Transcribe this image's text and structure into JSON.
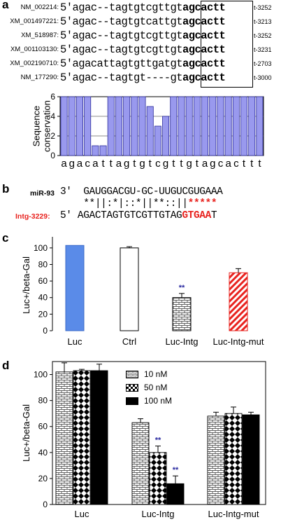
{
  "panels": {
    "a": "a",
    "b": "b",
    "c": "c",
    "d": "d"
  },
  "alignment": {
    "rows": [
      {
        "id": "NM_002214:",
        "prefix": "5'",
        "seq": "agac--tagtgtcgttgt",
        "seed": "agcactt",
        "pos": "t-3252"
      },
      {
        "id": "XM_001497221:",
        "prefix": "5'",
        "seq": "agac--tagtgtcattgt",
        "seed": "agcactt",
        "pos": "t-3213"
      },
      {
        "id": "XM_518987:",
        "prefix": "5'",
        "seq": "agac--tagtgtcgttgt",
        "seed": "agcactt",
        "pos": "t-3252"
      },
      {
        "id": "XM_001103130:",
        "prefix": "5'",
        "seq": "agac--tagtgtcgttgt",
        "seed": "agcactt",
        "pos": "t-3231"
      },
      {
        "id": "XM_002190710:",
        "prefix": "5'",
        "seq": "agacattagtgttgatgt",
        "seed": "agcactt",
        "pos": "t-2703"
      },
      {
        "id": "NM_177290:",
        "prefix": "5'",
        "seq": "agac--tagtgt----gt",
        "seed": "agcactt",
        "pos": "t-3000"
      }
    ]
  },
  "chart_data": [
    {
      "type": "bar",
      "ylabel": "Sequence conservation",
      "ylim": [
        0,
        6
      ],
      "yticks": [
        0,
        2,
        4,
        6
      ],
      "categories": [
        "a",
        "g",
        "a",
        "c",
        "a",
        "t",
        "t",
        "a",
        "g",
        "t",
        "g",
        "t",
        "c",
        "g",
        "t",
        "t",
        "g",
        "t",
        "a",
        "g",
        "c",
        "a",
        "c",
        "t",
        "t",
        "t"
      ],
      "values": [
        6,
        6,
        6,
        6,
        1,
        1,
        6,
        6,
        6,
        6,
        6,
        5,
        3,
        4,
        6,
        6,
        6,
        6,
        6,
        6,
        6,
        6,
        6,
        6,
        6,
        6
      ],
      "bar_color": "#9999ee",
      "grid": true
    },
    {
      "type": "bar",
      "ylabel": "Luc+/beta-Gal",
      "ylim": [
        0,
        110
      ],
      "yticks": [
        0,
        20,
        40,
        60,
        80,
        100
      ],
      "categories": [
        "Luc",
        "Ctrl",
        "Luc-Intg",
        "Luc-Intg-mut"
      ],
      "values": [
        103,
        100,
        40,
        70
      ],
      "errors": [
        0,
        1.5,
        5,
        5
      ],
      "significance": [
        "",
        "",
        "**",
        ""
      ],
      "styles": [
        "solid-blue",
        "white",
        "brick",
        "red-hatch"
      ]
    },
    {
      "type": "bar",
      "ylabel": "Luc+/beta-Gal",
      "ylim": [
        0,
        110
      ],
      "yticks": [
        0,
        20,
        40,
        60,
        80,
        100
      ],
      "categories": [
        "Luc",
        "Luc-Intg",
        "Luc-Intg-mut"
      ],
      "series": [
        {
          "name": "10 nM",
          "values": [
            102,
            63,
            68
          ],
          "errors": [
            7,
            3,
            3
          ]
        },
        {
          "name": "50 nM",
          "values": [
            103,
            40,
            70
          ],
          "errors": [
            1,
            5,
            5
          ]
        },
        {
          "name": "100 nM",
          "values": [
            103,
            16,
            69
          ],
          "errors": [
            5,
            6,
            2
          ]
        }
      ],
      "significance": [
        [
          "",
          "",
          ""
        ],
        [
          "",
          "**",
          "**"
        ],
        [
          "",
          "",
          ""
        ]
      ],
      "legend": "top-center"
    }
  ],
  "mirna": {
    "mir_label": "miR-93",
    "mir_prefix": "3'",
    "mir_seq": "GAUGGACGU-GC-UUGUCGUGAAA",
    "match_seq": "**||:*|::*||**::||",
    "match_red": "*****",
    "target_label": "Intg-3229:",
    "target_prefix": "5'",
    "target_seq": "AGACTAGTGTCGTTGTAG",
    "target_red": "GTGAA",
    "target_tail": "T",
    "accent_red": "#e8231f"
  }
}
